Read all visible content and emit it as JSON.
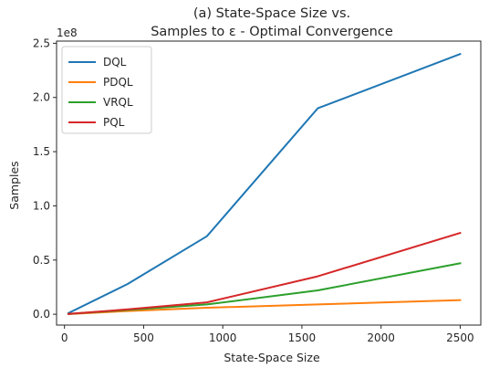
{
  "chart_data": {
    "type": "line",
    "title_lines": [
      "(a) State-Space Size vs.",
      "Samples to ε - Optimal Convergence"
    ],
    "xlabel": "State-Space Size",
    "ylabel": "Samples",
    "y_offset_label": "1e8",
    "xlim": [
      -50,
      2630
    ],
    "ylim": [
      -0.1,
      2.52
    ],
    "xticks": [
      0,
      500,
      1000,
      1500,
      2000,
      2500
    ],
    "xtick_labels": [
      "0",
      "500",
      "1000",
      "1500",
      "2000",
      "2500"
    ],
    "yticks": [
      0.0,
      0.5,
      1.0,
      1.5,
      2.0,
      2.5
    ],
    "ytick_labels": [
      "0.0",
      "0.5",
      "1.0",
      "1.5",
      "2.0",
      "2.5"
    ],
    "grid": false,
    "legend_position": "top-left",
    "series": [
      {
        "name": "DQL",
        "color": "#1f77b4",
        "x": [
          25,
          400,
          900,
          1600,
          2500
        ],
        "y": [
          0.01,
          0.28,
          0.72,
          1.9,
          2.4
        ]
      },
      {
        "name": "PDQL",
        "color": "#ff7f0e",
        "x": [
          25,
          400,
          900,
          1600,
          2500
        ],
        "y": [
          0.002,
          0.03,
          0.06,
          0.09,
          0.13
        ]
      },
      {
        "name": "VRQL",
        "color": "#2ca02c",
        "x": [
          25,
          400,
          900,
          1600,
          2500
        ],
        "y": [
          0.003,
          0.04,
          0.09,
          0.22,
          0.47
        ]
      },
      {
        "name": "PQL",
        "color": "#d62728",
        "x": [
          25,
          400,
          900,
          1600,
          2500
        ],
        "y": [
          0.003,
          0.045,
          0.11,
          0.35,
          0.75
        ]
      }
    ]
  }
}
